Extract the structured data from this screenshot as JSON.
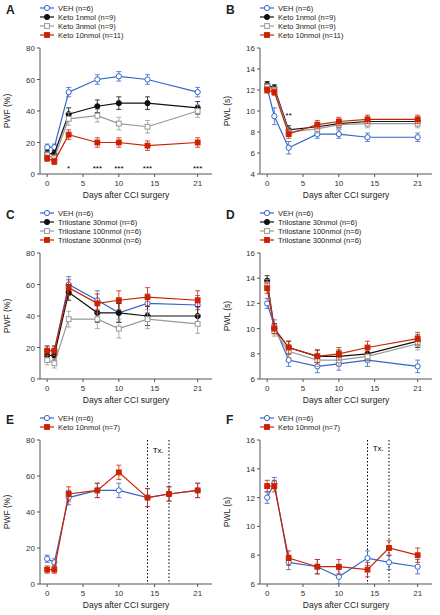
{
  "chart_data": [
    {
      "type": "line",
      "title": "A",
      "xlabel": "Days after CCI surgery",
      "ylabel": "PWF (%)",
      "x": [
        0,
        1,
        3,
        7,
        10,
        14,
        21
      ],
      "xlim": [
        -1,
        23
      ],
      "xticks": [
        0,
        5,
        10,
        15,
        21
      ],
      "ylim": [
        0,
        80
      ],
      "yticks": [
        0,
        20,
        40,
        60,
        80
      ],
      "grid": false,
      "legend": "top",
      "series": [
        {
          "name": "VEH (n=6)",
          "color": "#3366CC",
          "marker": "circle-open",
          "values": [
            17,
            17,
            52,
            60,
            62,
            60,
            52
          ],
          "errors": [
            2,
            2,
            3,
            3,
            3,
            3,
            3
          ]
        },
        {
          "name": "Keto 1nmol (n=9)",
          "color": "#111111",
          "marker": "circle",
          "values": [
            13,
            13,
            38,
            43,
            45,
            45,
            42
          ],
          "errors": [
            2,
            2,
            4,
            4,
            4,
            4,
            4
          ]
        },
        {
          "name": "Keto 3nmol (n=9)",
          "color": "#999999",
          "marker": "square-open",
          "values": [
            12,
            10,
            35,
            37,
            32,
            30,
            40
          ],
          "errors": [
            2,
            2,
            4,
            4,
            4,
            4,
            4
          ]
        },
        {
          "name": "Keto 10nmol (n=11)",
          "color": "#CC2200",
          "marker": "square",
          "values": [
            10,
            8,
            25,
            20,
            20,
            18,
            20
          ],
          "errors": [
            2,
            2,
            3,
            3,
            3,
            3,
            3
          ]
        }
      ],
      "annotations": [
        {
          "x": 3,
          "y": 1.5,
          "text": "*"
        },
        {
          "x": 7,
          "y": 1.5,
          "text": "***"
        },
        {
          "x": 10,
          "y": 1.5,
          "text": "***"
        },
        {
          "x": 14,
          "y": 1.5,
          "text": "***"
        },
        {
          "x": 21,
          "y": 1.5,
          "text": "***"
        }
      ]
    },
    {
      "type": "line",
      "title": "B",
      "xlabel": "Days after CCI surgery",
      "ylabel": "PWL (s)",
      "x": [
        0,
        1,
        3,
        7,
        10,
        14,
        21
      ],
      "xlim": [
        -1,
        23
      ],
      "xticks": [
        0,
        5,
        10,
        15,
        21
      ],
      "ylim": [
        4,
        16
      ],
      "yticks": [
        4,
        6,
        8,
        10,
        12,
        14,
        16
      ],
      "grid": false,
      "legend": "top",
      "series": [
        {
          "name": "VEH (n=6)",
          "color": "#3366CC",
          "marker": "circle-open",
          "values": [
            12.2,
            9.5,
            6.5,
            7.8,
            7.8,
            7.5,
            7.5
          ],
          "errors": [
            0.3,
            0.8,
            0.6,
            0.4,
            0.4,
            0.4,
            0.4
          ]
        },
        {
          "name": "Keto 1nmol (n=9)",
          "color": "#111111",
          "marker": "circle",
          "values": [
            12.5,
            12.2,
            8.2,
            8.5,
            8.8,
            9.0,
            9.0
          ],
          "errors": [
            0.3,
            0.3,
            0.4,
            0.4,
            0.4,
            0.4,
            0.4
          ]
        },
        {
          "name": "Keto 3nmol (n=9)",
          "color": "#999999",
          "marker": "square-open",
          "values": [
            12.3,
            12.0,
            8.0,
            8.3,
            8.7,
            8.8,
            8.8
          ],
          "errors": [
            0.3,
            0.3,
            0.4,
            0.4,
            0.4,
            0.4,
            0.4
          ]
        },
        {
          "name": "Keto 10nmol (n=11)",
          "color": "#CC2200",
          "marker": "square",
          "values": [
            12.0,
            11.8,
            7.8,
            8.7,
            9.0,
            9.2,
            9.2
          ],
          "errors": [
            0.3,
            0.3,
            0.4,
            0.4,
            0.4,
            0.4,
            0.4
          ]
        }
      ],
      "annotations": [
        {
          "x": 3,
          "y": 9.2,
          "text": "**"
        }
      ]
    },
    {
      "type": "line",
      "title": "C",
      "xlabel": "Days after CCI surgery",
      "ylabel": "PWF (%)",
      "x": [
        0,
        1,
        3,
        7,
        10,
        14,
        21
      ],
      "xlim": [
        -1,
        23
      ],
      "xticks": [
        0,
        5,
        10,
        15,
        21
      ],
      "ylim": [
        0,
        80
      ],
      "yticks": [
        0,
        20,
        40,
        60,
        80
      ],
      "grid": false,
      "legend": "top",
      "series": [
        {
          "name": "VEH (n=6)",
          "color": "#3366CC",
          "marker": "circle-open",
          "values": [
            18,
            18,
            60,
            50,
            42,
            48,
            47
          ],
          "errors": [
            3,
            3,
            5,
            6,
            6,
            6,
            6
          ]
        },
        {
          "name": "Trilostane 30nmol (n=6)",
          "color": "#111111",
          "marker": "circle",
          "values": [
            15,
            15,
            55,
            42,
            42,
            40,
            40
          ],
          "errors": [
            3,
            3,
            5,
            6,
            6,
            6,
            6
          ]
        },
        {
          "name": "Trilostane 100nmol (n=6)",
          "color": "#999999",
          "marker": "square-open",
          "values": [
            12,
            10,
            38,
            38,
            32,
            38,
            35
          ],
          "errors": [
            3,
            3,
            5,
            6,
            6,
            6,
            6
          ]
        },
        {
          "name": "Trilostane 300nmol (n=6)",
          "color": "#CC2200",
          "marker": "square",
          "values": [
            18,
            18,
            58,
            48,
            50,
            52,
            50
          ],
          "errors": [
            3,
            3,
            5,
            6,
            6,
            6,
            6
          ]
        }
      ]
    },
    {
      "type": "line",
      "title": "D",
      "xlabel": "Days after CCI surgery",
      "ylabel": "PWL (s)",
      "x": [
        0,
        1,
        3,
        7,
        10,
        14,
        21
      ],
      "xlim": [
        -1,
        23
      ],
      "xticks": [
        0,
        5,
        10,
        15,
        21
      ],
      "ylim": [
        6,
        16
      ],
      "yticks": [
        6,
        8,
        10,
        12,
        14,
        16
      ],
      "grid": false,
      "legend": "top",
      "series": [
        {
          "name": "VEH (n=6)",
          "color": "#3366CC",
          "marker": "circle-open",
          "values": [
            12.0,
            10.2,
            7.5,
            7.0,
            7.2,
            7.5,
            7.0
          ],
          "errors": [
            0.4,
            0.5,
            0.5,
            0.5,
            0.5,
            0.5,
            0.5
          ]
        },
        {
          "name": "Trilostane 30nmol (n=6)",
          "color": "#111111",
          "marker": "circle",
          "values": [
            13.8,
            10.0,
            8.5,
            7.8,
            7.8,
            8.0,
            9.0
          ],
          "errors": [
            0.4,
            0.4,
            0.5,
            0.5,
            0.5,
            0.5,
            0.5
          ]
        },
        {
          "name": "Trilostane 100nmol (n=6)",
          "color": "#999999",
          "marker": "square-open",
          "values": [
            13.5,
            9.8,
            8.2,
            7.5,
            7.5,
            7.8,
            8.8
          ],
          "errors": [
            0.4,
            0.4,
            0.5,
            0.5,
            0.5,
            0.5,
            0.5
          ]
        },
        {
          "name": "Trilostane 300nmol (n=6)",
          "color": "#CC2200",
          "marker": "square",
          "values": [
            13.2,
            10.0,
            8.5,
            7.8,
            8.0,
            8.5,
            9.2
          ],
          "errors": [
            0.4,
            0.4,
            0.5,
            0.5,
            0.5,
            0.5,
            0.5
          ]
        }
      ]
    },
    {
      "type": "line",
      "title": "E",
      "xlabel": "Days after CCI surgery",
      "ylabel": "PWF (%)",
      "x": [
        0,
        1,
        3,
        7,
        10,
        14,
        17,
        21
      ],
      "xlim": [
        -1,
        23
      ],
      "xticks": [
        0,
        5,
        10,
        15,
        21
      ],
      "ylim": [
        0,
        80
      ],
      "yticks": [
        0,
        20,
        40,
        60,
        80
      ],
      "grid": false,
      "legend": "top",
      "vlines": [
        14,
        17
      ],
      "series": [
        {
          "name": "VEH (n=6)",
          "color": "#3366CC",
          "marker": "circle-open",
          "values": [
            14,
            12,
            48,
            52,
            52,
            48,
            50,
            52
          ],
          "errors": [
            2,
            2,
            4,
            4,
            4,
            5,
            4,
            4
          ]
        },
        {
          "name": "Keto 10nmol (n=7)",
          "color": "#CC2200",
          "marker": "square",
          "values": [
            8,
            8,
            50,
            52,
            62,
            48,
            50,
            52
          ],
          "errors": [
            2,
            2,
            4,
            4,
            4,
            5,
            4,
            4
          ]
        }
      ],
      "annotations": [
        {
          "x": 15.5,
          "y": 72,
          "text": "Tx."
        }
      ]
    },
    {
      "type": "line",
      "title": "F",
      "xlabel": "Days after CCI surgery",
      "ylabel": "PWL (s)",
      "x": [
        0,
        1,
        3,
        7,
        10,
        14,
        17,
        21
      ],
      "xlim": [
        -1,
        23
      ],
      "xticks": [
        0,
        5,
        10,
        15,
        21
      ],
      "ylim": [
        6,
        16
      ],
      "yticks": [
        6,
        8,
        10,
        12,
        14,
        16
      ],
      "grid": false,
      "legend": "top",
      "vlines": [
        14,
        17
      ],
      "series": [
        {
          "name": "VEH (n=6)",
          "color": "#3366CC",
          "marker": "circle-open",
          "values": [
            12.0,
            13.0,
            7.5,
            7.2,
            6.5,
            7.8,
            7.5,
            7.2
          ],
          "errors": [
            0.4,
            0.4,
            0.5,
            0.5,
            0.5,
            0.5,
            0.5,
            0.5
          ]
        },
        {
          "name": "Keto 10nmol (n=7)",
          "color": "#CC2200",
          "marker": "square",
          "values": [
            12.8,
            12.8,
            7.8,
            7.2,
            7.2,
            7.0,
            8.5,
            8.0
          ],
          "errors": [
            0.4,
            0.4,
            0.5,
            0.5,
            0.5,
            0.5,
            0.5,
            0.5
          ]
        }
      ],
      "annotations": [
        {
          "x": 15.5,
          "y": 15.2,
          "text": "Tx."
        }
      ]
    }
  ]
}
